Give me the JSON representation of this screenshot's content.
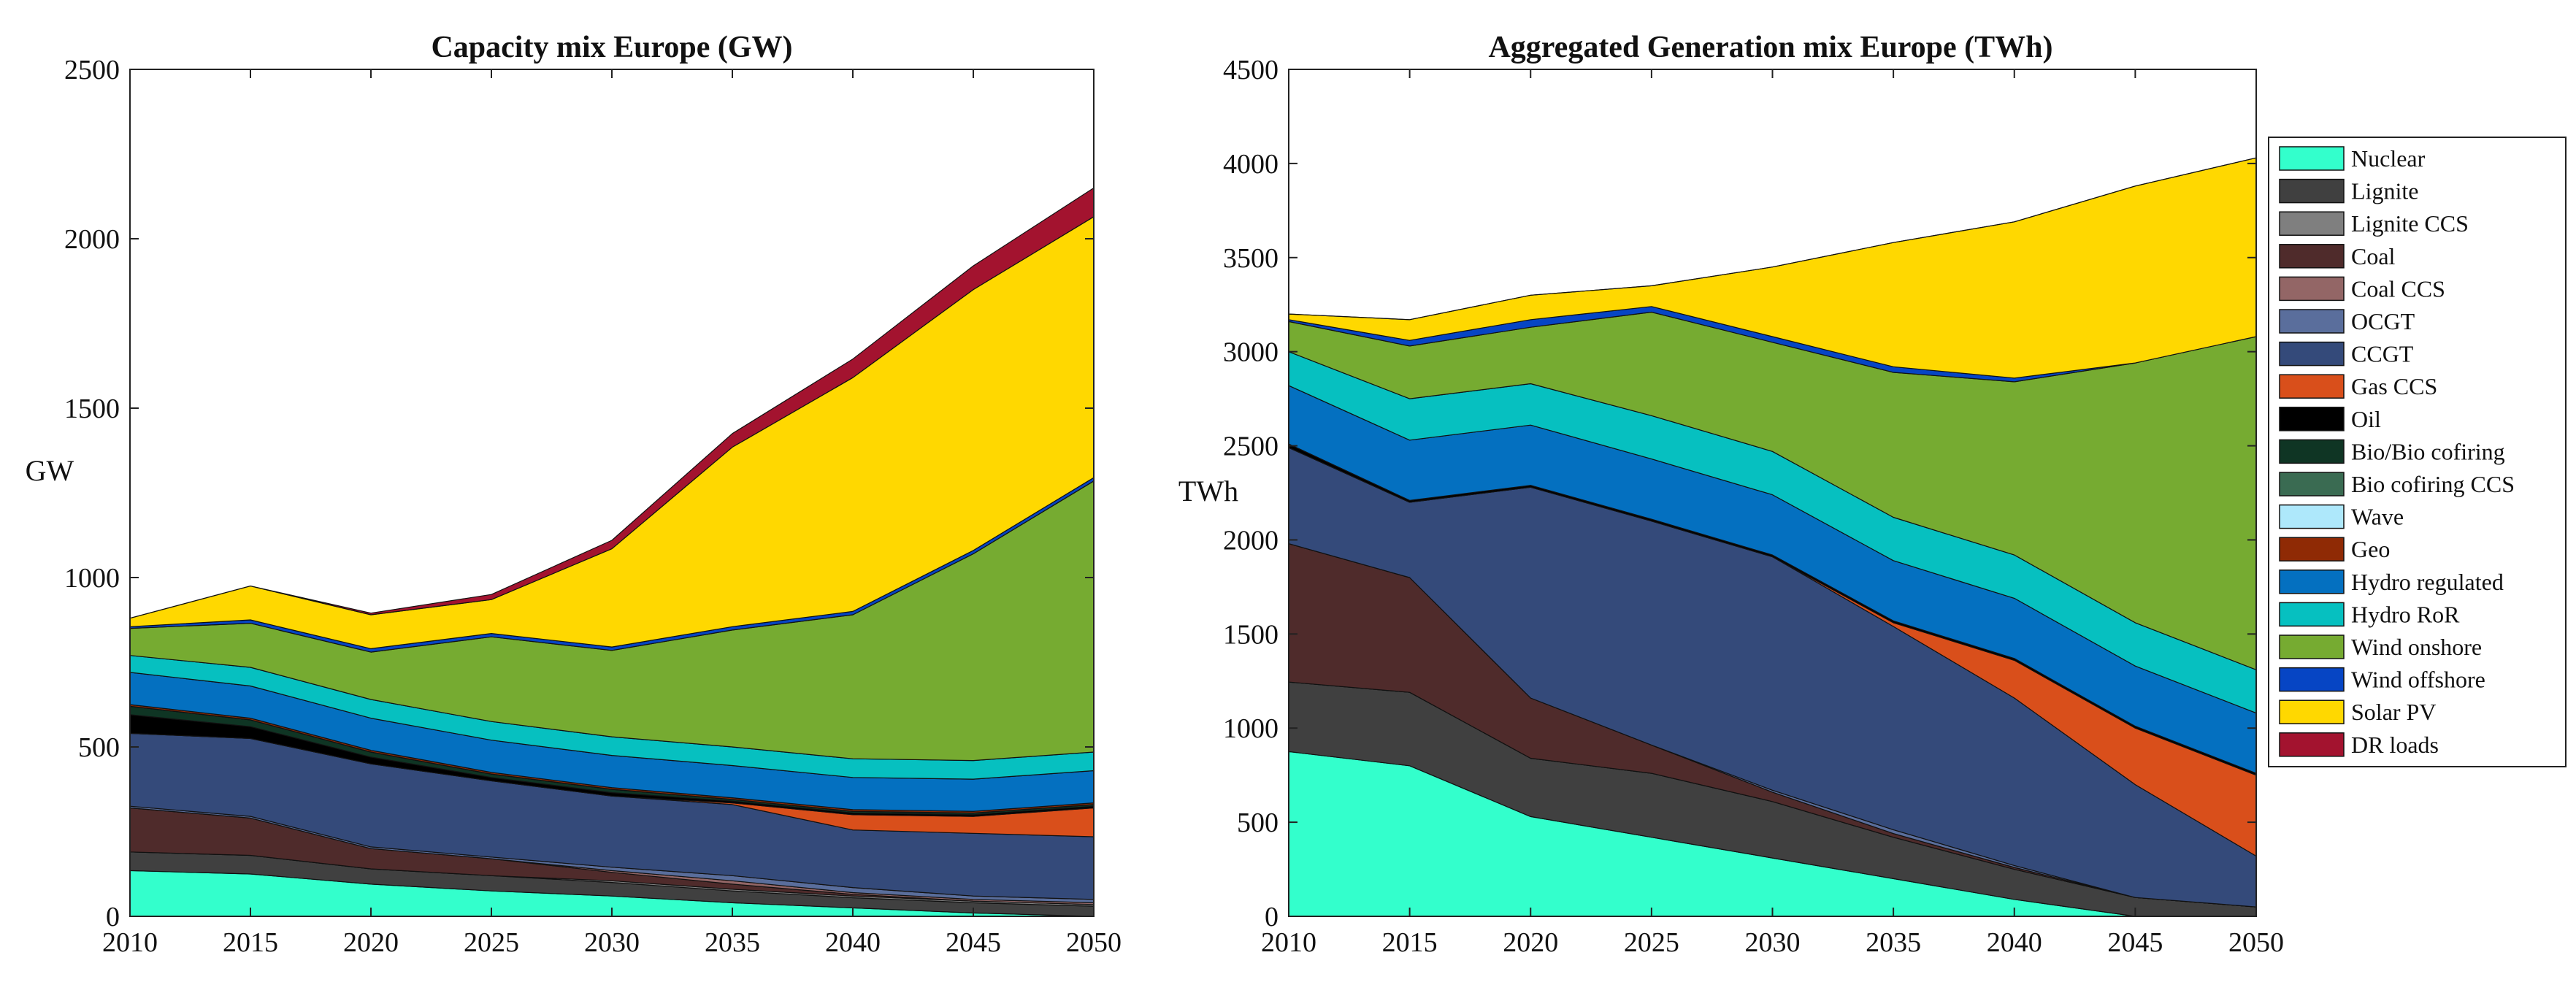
{
  "chart_data": [
    {
      "type": "area",
      "stacked": true,
      "title": "Capacity mix Europe (GW)",
      "xlabel": "",
      "ylabel": "GW",
      "xlim": [
        2010,
        2050
      ],
      "ylim": [
        0,
        2500
      ],
      "x": [
        2010,
        2015,
        2020,
        2025,
        2030,
        2035,
        2040,
        2045,
        2050
      ],
      "xticks": [
        2010,
        2015,
        2020,
        2025,
        2030,
        2035,
        2040,
        2045,
        2050
      ],
      "yticks": [
        0,
        500,
        1000,
        1500,
        2000,
        2500
      ],
      "series": [
        {
          "name": "Nuclear",
          "values": [
            135,
            125,
            95,
            75,
            60,
            40,
            25,
            10,
            0
          ]
        },
        {
          "name": "Lignite",
          "values": [
            55,
            55,
            45,
            45,
            40,
            35,
            30,
            30,
            30
          ]
        },
        {
          "name": "Lignite CCS",
          "values": [
            0,
            0,
            0,
            0,
            5,
            5,
            5,
            5,
            5
          ]
        },
        {
          "name": "Coal",
          "values": [
            130,
            110,
            60,
            50,
            25,
            15,
            5,
            0,
            0
          ]
        },
        {
          "name": "Coal CCS",
          "values": [
            0,
            0,
            0,
            0,
            5,
            10,
            5,
            5,
            5
          ]
        },
        {
          "name": "OCGT",
          "values": [
            5,
            5,
            5,
            5,
            10,
            15,
            15,
            10,
            10
          ]
        },
        {
          "name": "CCGT",
          "values": [
            215,
            230,
            245,
            225,
            210,
            210,
            170,
            185,
            185
          ]
        },
        {
          "name": "Gas CCS",
          "values": [
            0,
            0,
            0,
            0,
            0,
            5,
            45,
            50,
            85
          ]
        },
        {
          "name": "Oil",
          "values": [
            55,
            35,
            20,
            10,
            10,
            5,
            5,
            5,
            5
          ]
        },
        {
          "name": "Bio/Bio cofiring",
          "values": [
            25,
            20,
            15,
            10,
            10,
            5,
            5,
            5,
            5
          ]
        },
        {
          "name": "Bio cofiring CCS",
          "values": [
            0,
            0,
            0,
            0,
            0,
            0,
            0,
            0,
            0
          ]
        },
        {
          "name": "Wave",
          "values": [
            0,
            0,
            0,
            0,
            0,
            0,
            0,
            0,
            0
          ]
        },
        {
          "name": "Geo",
          "values": [
            5,
            5,
            5,
            5,
            5,
            5,
            5,
            5,
            5
          ]
        },
        {
          "name": "Hydro regulated",
          "values": [
            95,
            95,
            95,
            95,
            95,
            95,
            95,
            95,
            95
          ]
        },
        {
          "name": "Hydro RoR",
          "values": [
            50,
            55,
            55,
            55,
            55,
            55,
            55,
            55,
            55
          ]
        },
        {
          "name": "Wind onshore",
          "values": [
            80,
            130,
            140,
            250,
            255,
            345,
            425,
            610,
            800
          ]
        },
        {
          "name": "Wind offshore",
          "values": [
            5,
            10,
            10,
            10,
            10,
            10,
            10,
            10,
            10
          ]
        },
        {
          "name": "Solar PV",
          "values": [
            25,
            100,
            100,
            100,
            290,
            530,
            690,
            770,
            770
          ]
        },
        {
          "name": "DR loads",
          "values": [
            0,
            0,
            5,
            15,
            25,
            40,
            55,
            70,
            85
          ]
        }
      ]
    },
    {
      "type": "area",
      "stacked": true,
      "title": "Aggregated Generation mix Europe (TWh)",
      "xlabel": "",
      "ylabel": "TWh",
      "xlim": [
        2010,
        2050
      ],
      "ylim": [
        0,
        4500
      ],
      "x": [
        2010,
        2015,
        2020,
        2025,
        2030,
        2035,
        2040,
        2045,
        2050
      ],
      "xticks": [
        2010,
        2015,
        2020,
        2025,
        2030,
        2035,
        2040,
        2045,
        2050
      ],
      "yticks": [
        0,
        500,
        1000,
        1500,
        2000,
        2500,
        3000,
        3500,
        4000,
        4500
      ],
      "series": [
        {
          "name": "Nuclear",
          "values": [
            875,
            800,
            530,
            420,
            310,
            200,
            90,
            0,
            0
          ]
        },
        {
          "name": "Lignite",
          "values": [
            370,
            390,
            310,
            340,
            300,
            220,
            160,
            100,
            50
          ]
        },
        {
          "name": "Lignite CCS",
          "values": [
            0,
            0,
            0,
            0,
            0,
            0,
            0,
            0,
            0
          ]
        },
        {
          "name": "Coal",
          "values": [
            735,
            610,
            320,
            150,
            50,
            20,
            10,
            0,
            0
          ]
        },
        {
          "name": "Coal CCS",
          "values": [
            0,
            0,
            0,
            0,
            0,
            0,
            0,
            0,
            0
          ]
        },
        {
          "name": "OCGT",
          "values": [
            0,
            0,
            0,
            0,
            10,
            20,
            10,
            0,
            0
          ]
        },
        {
          "name": "CCGT",
          "values": [
            510,
            400,
            1120,
            1190,
            1240,
            1080,
            890,
            600,
            270
          ]
        },
        {
          "name": "Gas CCS",
          "values": [
            0,
            0,
            0,
            0,
            0,
            20,
            200,
            300,
            430
          ]
        },
        {
          "name": "Oil",
          "values": [
            20,
            10,
            10,
            10,
            10,
            10,
            10,
            10,
            10
          ]
        },
        {
          "name": "Bio/Bio cofiring",
          "values": [
            0,
            0,
            0,
            0,
            0,
            0,
            0,
            0,
            0
          ]
        },
        {
          "name": "Bio cofiring CCS",
          "values": [
            0,
            0,
            0,
            0,
            0,
            0,
            0,
            0,
            0
          ]
        },
        {
          "name": "Wave",
          "values": [
            0,
            0,
            0,
            0,
            0,
            0,
            0,
            0,
            0
          ]
        },
        {
          "name": "Geo",
          "values": [
            0,
            0,
            0,
            0,
            0,
            0,
            0,
            0,
            0
          ]
        },
        {
          "name": "Hydro regulated",
          "values": [
            310,
            320,
            320,
            320,
            320,
            320,
            320,
            320,
            320
          ]
        },
        {
          "name": "Hydro RoR",
          "values": [
            180,
            220,
            220,
            230,
            230,
            230,
            230,
            230,
            230
          ]
        },
        {
          "name": "Wind onshore",
          "values": [
            160,
            280,
            300,
            550,
            580,
            770,
            920,
            1380,
            1770
          ]
        },
        {
          "name": "Wind offshore",
          "values": [
            10,
            30,
            40,
            30,
            30,
            30,
            20,
            0,
            0
          ]
        },
        {
          "name": "Solar PV",
          "values": [
            30,
            110,
            130,
            110,
            370,
            660,
            830,
            940,
            950
          ]
        },
        {
          "name": "DR loads",
          "values": [
            0,
            0,
            0,
            0,
            0,
            0,
            0,
            0,
            0
          ]
        }
      ]
    }
  ],
  "legend": {
    "placement": "right",
    "items": [
      {
        "name": "Nuclear",
        "color": "#33ffcc"
      },
      {
        "name": "Lignite",
        "color": "#404040"
      },
      {
        "name": "Lignite CCS",
        "color": "#7f7f7f"
      },
      {
        "name": "Coal",
        "color": "#4f2b2b"
      },
      {
        "name": "Coal CCS",
        "color": "#936666"
      },
      {
        "name": "OCGT",
        "color": "#5a6e9c"
      },
      {
        "name": "CCGT",
        "color": "#344a7a"
      },
      {
        "name": "Gas CCS",
        "color": "#d94f1b"
      },
      {
        "name": "Oil",
        "color": "#000000"
      },
      {
        "name": "Bio/Bio cofiring",
        "color": "#0f3524"
      },
      {
        "name": "Bio cofiring CCS",
        "color": "#3a6b52"
      },
      {
        "name": "Wave",
        "color": "#aee8fb"
      },
      {
        "name": "Geo",
        "color": "#8f2a05"
      },
      {
        "name": "Hydro regulated",
        "color": "#0470c0"
      },
      {
        "name": "Hydro RoR",
        "color": "#06c0c0"
      },
      {
        "name": "Wind onshore",
        "color": "#76ab31"
      },
      {
        "name": "Wind offshore",
        "color": "#0645c4"
      },
      {
        "name": "Solar PV",
        "color": "#ffd800"
      },
      {
        "name": "DR loads",
        "color": "#a3132f"
      }
    ]
  }
}
